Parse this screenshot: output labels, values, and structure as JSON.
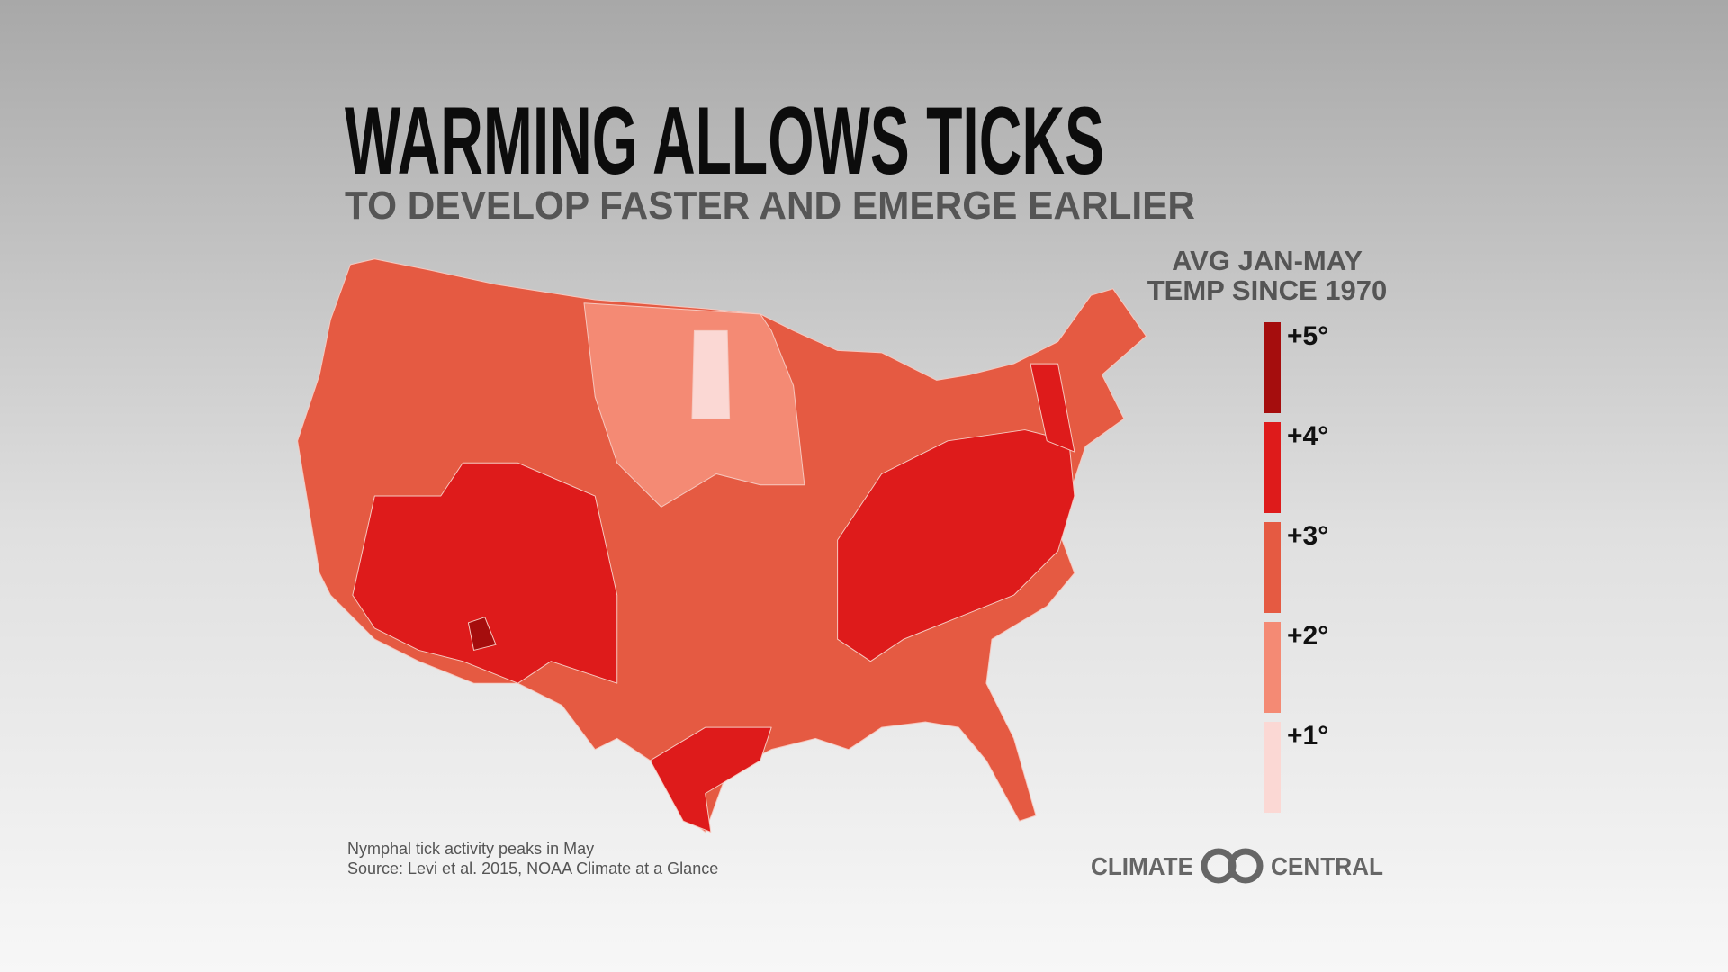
{
  "header": {
    "title": "WARMING ALLOWS TICKS",
    "subtitle": "TO DEVELOP FASTER AND EMERGE EARLIER"
  },
  "legend": {
    "title": [
      "AVG JAN-MAY",
      "TEMP SINCE 1970"
    ],
    "items": [
      {
        "label": "+5°",
        "color": "#a50d0d"
      },
      {
        "label": "+4°",
        "color": "#de1b1b"
      },
      {
        "label": "+3°",
        "color": "#e55a42"
      },
      {
        "label": "+2°",
        "color": "#f48a74"
      },
      {
        "label": "+1°",
        "color": "#fbd8d4"
      }
    ]
  },
  "notes": [
    "Nymphal tick activity peaks in May",
    "Source: Levi et al. 2015, NOAA Climate at a Glance"
  ],
  "logo": {
    "left": "CLIMATE",
    "right": "CENTRAL"
  }
}
